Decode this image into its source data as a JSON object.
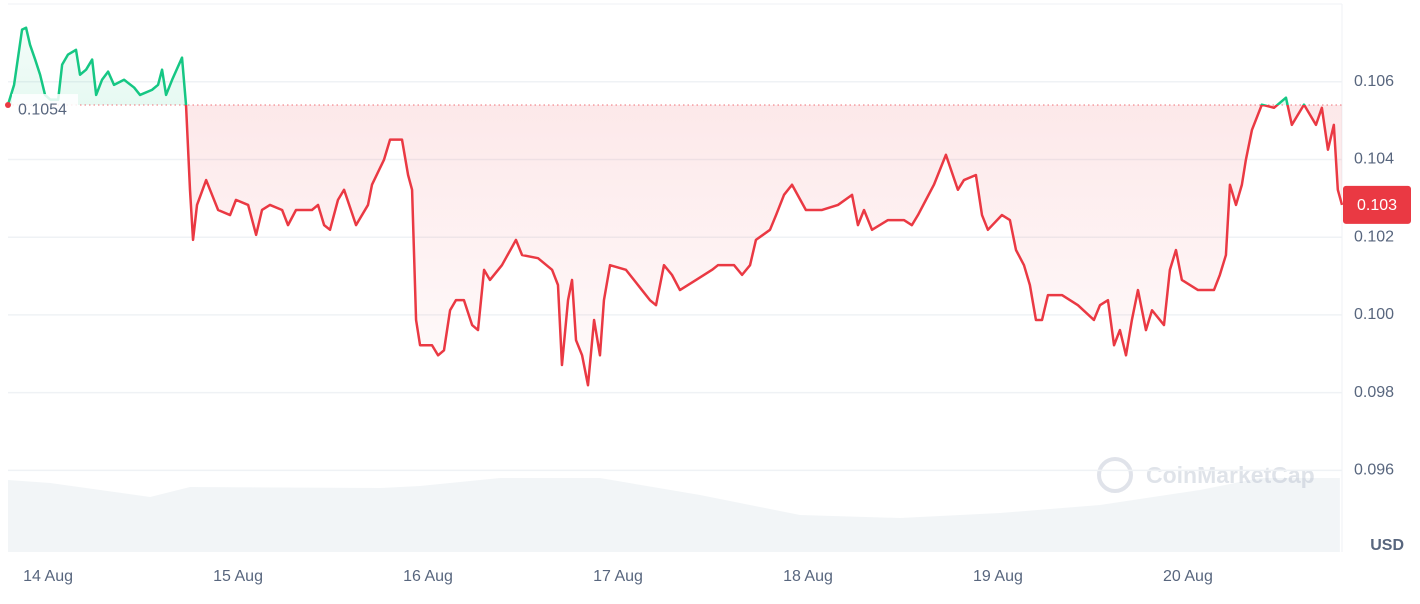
{
  "chart_data": {
    "type": "line",
    "xlim": [
      -0.211,
      6.811
    ],
    "xticks": [
      {
        "value": 0,
        "label": "14 Aug"
      },
      {
        "value": 1,
        "label": "15 Aug"
      },
      {
        "value": 2,
        "label": "16 Aug"
      },
      {
        "value": 3,
        "label": "17 Aug"
      },
      {
        "value": 4,
        "label": "18 Aug"
      },
      {
        "value": 5,
        "label": "19 Aug"
      },
      {
        "value": 6,
        "label": "20 Aug"
      }
    ],
    "ylim": [
      0.0939,
      0.108
    ],
    "yticks": [
      0.096,
      0.098,
      {
        "value": 0.1,
        "label": "0.100"
      },
      0.102,
      0.104,
      0.106
    ],
    "grid": true,
    "y_unit": "USD",
    "up_color": "#16c784",
    "down_color": "#ea3943",
    "baseline": 0.1054,
    "current_price": {
      "value": 0.10283,
      "label": "0.103"
    },
    "watermark": "CoinMarketCap",
    "x": [
      -0.211,
      -0.179,
      -0.137,
      -0.116,
      -0.095,
      -0.068,
      -0.042,
      -0.016,
      0.011,
      0.053,
      0.074,
      0.105,
      0.147,
      0.168,
      0.2,
      0.232,
      0.253,
      0.284,
      0.316,
      0.347,
      0.4,
      0.453,
      0.484,
      0.547,
      0.579,
      0.6,
      0.621,
      0.653,
      0.705,
      0.726,
      0.747,
      0.763,
      0.784,
      0.832,
      0.863,
      0.895,
      0.958,
      0.989,
      1.053,
      1.095,
      1.126,
      1.168,
      1.232,
      1.263,
      1.305,
      1.389,
      1.421,
      1.453,
      1.484,
      1.526,
      1.558,
      1.621,
      1.684,
      1.705,
      1.768,
      1.8,
      1.863,
      1.895,
      1.916,
      1.937,
      1.958,
      2.021,
      2.053,
      2.084,
      2.116,
      2.147,
      2.189,
      2.232,
      2.263,
      2.295,
      2.326,
      2.389,
      2.463,
      2.495,
      2.579,
      2.653,
      2.684,
      2.705,
      2.737,
      2.758,
      2.779,
      2.811,
      2.842,
      2.874,
      2.905,
      2.926,
      2.958,
      3.042,
      3.126,
      3.168,
      3.2,
      3.242,
      3.284,
      3.326,
      3.411,
      3.495,
      3.526,
      3.611,
      3.653,
      3.695,
      3.726,
      3.8,
      3.832,
      3.874,
      3.916,
      3.989,
      4.074,
      4.158,
      4.232,
      4.263,
      4.295,
      4.337,
      4.421,
      4.505,
      4.547,
      4.579,
      4.621,
      4.663,
      4.726,
      4.789,
      4.821,
      4.884,
      4.916,
      4.947,
      5.021,
      5.063,
      5.095,
      5.137,
      5.168,
      5.2,
      5.232,
      5.263,
      5.337,
      5.421,
      5.505,
      5.537,
      5.579,
      5.611,
      5.642,
      5.674,
      5.705,
      5.737,
      5.779,
      5.811,
      5.874,
      5.905,
      5.937,
      5.968,
      6.053,
      6.137,
      6.168,
      6.2,
      6.221,
      6.253,
      6.284,
      6.305,
      6.337,
      6.389,
      6.453,
      6.516,
      6.547,
      6.611,
      6.674,
      6.705,
      6.737,
      6.768,
      6.789,
      6.811
    ],
    "values": [
      0.10541,
      0.10592,
      0.10734,
      0.10739,
      0.10695,
      0.10657,
      0.10618,
      0.10566,
      0.10554,
      0.10554,
      0.10644,
      0.1067,
      0.10682,
      0.10618,
      0.10631,
      0.10657,
      0.10566,
      0.10605,
      0.10626,
      0.10592,
      0.10605,
      0.10585,
      0.10566,
      0.10579,
      0.10592,
      0.10631,
      0.10566,
      0.10605,
      0.10662,
      0.10541,
      0.10322,
      0.10193,
      0.10283,
      0.10347,
      0.10309,
      0.1027,
      0.10257,
      0.10296,
      0.10283,
      0.10206,
      0.1027,
      0.10283,
      0.1027,
      0.10231,
      0.1027,
      0.1027,
      0.10283,
      0.10231,
      0.10219,
      0.10296,
      0.10322,
      0.10231,
      0.10283,
      0.10335,
      0.10399,
      0.10451,
      0.10451,
      0.1036,
      0.10322,
      0.09987,
      0.09922,
      0.09922,
      0.09896,
      0.09909,
      0.10012,
      0.10038,
      0.10038,
      0.09974,
      0.09961,
      0.10116,
      0.1009,
      0.10128,
      0.10193,
      0.10154,
      0.10146,
      0.10116,
      0.10077,
      0.09871,
      0.10038,
      0.1009,
      0.09935,
      0.09896,
      0.09819,
      0.09987,
      0.09896,
      0.10038,
      0.10128,
      0.10116,
      0.10064,
      0.10038,
      0.10025,
      0.10128,
      0.10103,
      0.10064,
      0.1009,
      0.10116,
      0.10128,
      0.10128,
      0.10103,
      0.10128,
      0.10193,
      0.10219,
      0.10257,
      0.10309,
      0.10335,
      0.1027,
      0.1027,
      0.10283,
      0.10309,
      0.10231,
      0.1027,
      0.10219,
      0.10244,
      0.10244,
      0.10231,
      0.10257,
      0.10296,
      0.10335,
      0.10412,
      0.10322,
      0.10347,
      0.1036,
      0.10257,
      0.10219,
      0.10257,
      0.10244,
      0.10167,
      0.10128,
      0.10077,
      0.09987,
      0.09987,
      0.10051,
      0.10051,
      0.10025,
      0.09987,
      0.10025,
      0.10038,
      0.09922,
      0.09961,
      0.09896,
      0.09987,
      0.10064,
      0.09961,
      0.10012,
      0.09974,
      0.10116,
      0.10167,
      0.1009,
      0.10064,
      0.10064,
      0.10103,
      0.10154,
      0.10335,
      0.10283,
      0.10335,
      0.10399,
      0.10476,
      0.10541,
      0.10533,
      0.10559,
      0.10489,
      0.10541,
      0.10489,
      0.10533,
      0.10425,
      0.10489,
      0.10322,
      0.10283
    ],
    "volume": {
      "vlim": [
        0,
        100
      ],
      "x": [
        -0.211,
        0.011,
        0.537,
        0.747,
        1.747,
        1.958,
        2.379,
        2.905,
        3.432,
        3.958,
        4.484,
        5.011,
        5.537,
        6.063,
        6.379,
        6.8
      ],
      "values": [
        72,
        69,
        55,
        65,
        64,
        66,
        74,
        74,
        57,
        37,
        34,
        39,
        47,
        62,
        74,
        74
      ]
    }
  }
}
